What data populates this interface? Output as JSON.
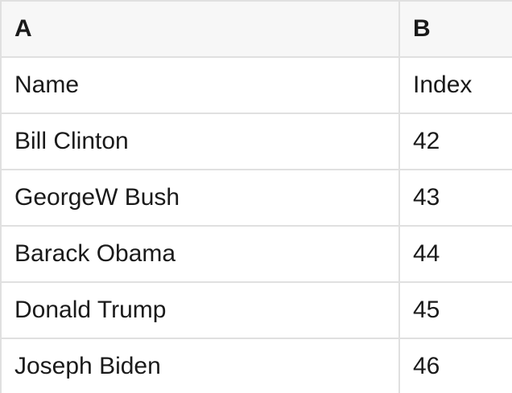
{
  "table": {
    "columns": [
      {
        "key": "A",
        "header": "A"
      },
      {
        "key": "B",
        "header": "B"
      }
    ],
    "rows": [
      {
        "a": "Name",
        "b": "Index"
      },
      {
        "a": "Bill Clinton",
        "b": "42"
      },
      {
        "a": "GeorgeW Bush",
        "b": "43"
      },
      {
        "a": "Barack Obama",
        "b": "44"
      },
      {
        "a": "Donald Trump",
        "b": "45"
      },
      {
        "a": "Joseph Biden",
        "b": "46"
      }
    ]
  },
  "colors": {
    "header_bg": "#f7f7f7",
    "border": "#e0e0e0",
    "text": "#1a1a1a",
    "row_bg": "#ffffff"
  }
}
